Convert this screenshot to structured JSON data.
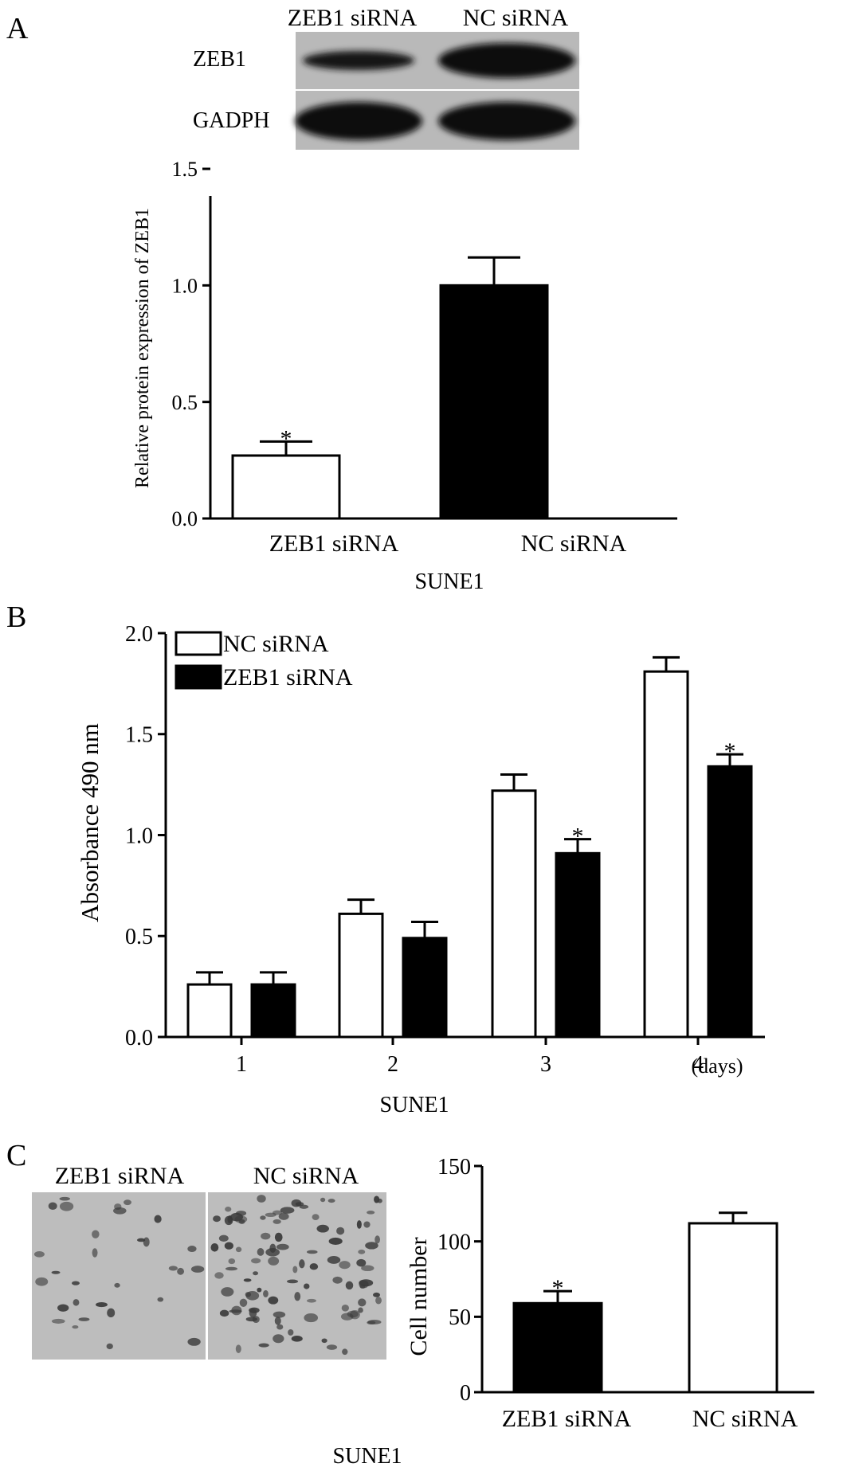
{
  "panels": {
    "A": {
      "letter": "A",
      "blot": {
        "lane_labels": [
          "ZEB1 siRNA",
          "NC siRNA"
        ],
        "row_labels": [
          "ZEB1",
          "GADPH"
        ],
        "band_intensity": {
          "ZEB1": [
            0.55,
            0.95
          ],
          "GADPH": [
            0.95,
            0.95
          ]
        }
      }
    },
    "B": {
      "letter": "B"
    },
    "C": {
      "letter": "C",
      "image_labels": [
        "ZEB1 siRNA",
        "NC siRNA"
      ],
      "image_cell_density": [
        0.25,
        0.85
      ]
    }
  },
  "colors": {
    "black": "#000000",
    "white": "#ffffff",
    "blot_bg": "#b9b9b9",
    "micro_bg": "#bdbdbd"
  },
  "chart_data": [
    {
      "id": "A",
      "type": "bar",
      "categories": [
        "ZEB1 siRNA",
        "NC siRNA"
      ],
      "values": [
        0.27,
        1.0
      ],
      "errors": [
        0.06,
        0.12
      ],
      "fills": [
        "#ffffff",
        "#000000"
      ],
      "significance": [
        "*",
        ""
      ],
      "ylabel": "Relative protein expression of ZEB1",
      "xlabel": "SUNE1",
      "ylim": [
        0,
        1.5
      ],
      "yticks": [
        "0.0",
        "0.5",
        "1.0",
        "1.5"
      ]
    },
    {
      "id": "B",
      "type": "bar",
      "categories": [
        "1",
        "2",
        "3",
        "4"
      ],
      "x_unit": "(days)",
      "series": [
        {
          "name": "NC siRNA",
          "values": [
            0.26,
            0.61,
            1.22,
            1.81
          ],
          "errors": [
            0.06,
            0.07,
            0.08,
            0.07
          ],
          "fill": "#ffffff",
          "significance": [
            "",
            "",
            "",
            ""
          ]
        },
        {
          "name": "ZEB1 siRNA",
          "values": [
            0.26,
            0.49,
            0.91,
            1.34
          ],
          "errors": [
            0.06,
            0.08,
            0.07,
            0.06
          ],
          "fill": "#000000",
          "significance": [
            "",
            "",
            "*",
            "*"
          ]
        }
      ],
      "ylabel": "Absorbance 490 nm",
      "xlabel": "SUNE1",
      "ylim": [
        0,
        2.0
      ],
      "yticks": [
        "0.0",
        "0.5",
        "1.0",
        "1.5",
        "2.0"
      ],
      "legend": "top-left"
    },
    {
      "id": "C",
      "type": "bar",
      "categories": [
        "ZEB1 siRNA",
        "NC siRNA"
      ],
      "values": [
        59,
        112
      ],
      "errors": [
        8,
        7
      ],
      "fills": [
        "#000000",
        "#ffffff"
      ],
      "significance": [
        "*",
        ""
      ],
      "ylabel": "Cell number",
      "xlabel": "SUNE1",
      "ylim": [
        0,
        150
      ],
      "yticks": [
        "0",
        "50",
        "100",
        "150"
      ]
    }
  ]
}
